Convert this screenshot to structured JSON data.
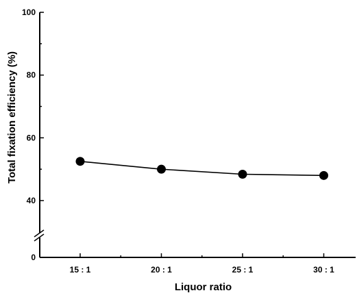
{
  "chart_data": {
    "type": "line",
    "xlabel": "Liquor ratio",
    "ylabel": "Total fixation efficiency (%)",
    "categories": [
      "15 : 1",
      "20 : 1",
      "25 : 1",
      "30 : 1"
    ],
    "series": [
      {
        "values": [
          52.5,
          50.0,
          48.4,
          48.0
        ],
        "color": "#000000",
        "marker": "circle"
      }
    ],
    "ylim": [
      0,
      100
    ],
    "yaxis_break": [
      0,
      30
    ],
    "yticks": [
      0,
      40,
      60,
      80,
      100
    ],
    "ytick_labels": [
      "0",
      "40",
      "60",
      "80",
      "100"
    ],
    "grid": false,
    "legend": "none"
  }
}
